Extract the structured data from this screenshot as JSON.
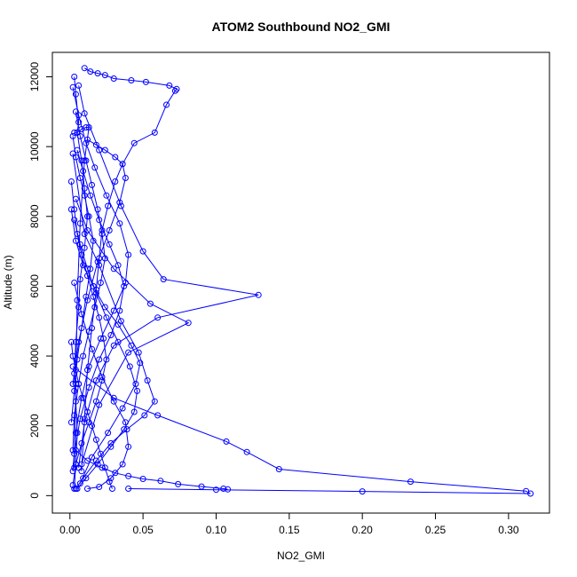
{
  "chart_data": {
    "type": "line",
    "title": "ATOM2 Southbound NO2_GMI",
    "xlabel": "NO2_GMI",
    "ylabel": "Altitude (m)",
    "xlim": [
      -0.012,
      0.328
    ],
    "ylim": [
      -500,
      12700
    ],
    "xticks": [
      0.0,
      0.05,
      0.1,
      0.15,
      0.2,
      0.25,
      0.3
    ],
    "xtick_labels": [
      "0.00",
      "0.05",
      "0.10",
      "0.15",
      "0.20",
      "0.25",
      "0.30"
    ],
    "yticks": [
      0,
      2000,
      4000,
      6000,
      8000,
      10000,
      12000
    ],
    "ytick_labels": [
      "0",
      "2000",
      "4000",
      "6000",
      "8000",
      "10000",
      "12000"
    ],
    "grid": false,
    "colors": {
      "series": "#0000ff"
    },
    "series": [
      {
        "x": [
          0.003,
          0.004,
          0.006,
          0.005,
          0.008,
          0.01,
          0.012,
          0.01,
          0.007,
          0.006,
          0.004,
          0.003,
          0.004,
          0.005,
          0.004,
          0.003
        ],
        "y": [
          12000,
          11500,
          10700,
          10400,
          9600,
          8800,
          8000,
          7100,
          6200,
          5400,
          4400,
          3500,
          2700,
          1800,
          900,
          200
        ]
      },
      {
        "x": [
          0.01,
          0.014,
          0.019,
          0.024,
          0.03,
          0.042,
          0.052,
          0.068,
          0.073,
          0.072,
          0.066,
          0.058,
          0.044,
          0.036,
          0.031,
          0.026,
          0.022,
          0.02,
          0.018,
          0.015,
          0.012,
          0.01,
          0.008
        ],
        "y": [
          12250,
          12150,
          12100,
          12050,
          11950,
          11900,
          11850,
          11750,
          11650,
          11600,
          11200,
          10400,
          10100,
          9500,
          9000,
          8300,
          7600,
          6800,
          5900,
          4800,
          3600,
          2200,
          700
        ]
      },
      {
        "x": [
          0.003,
          0.005,
          0.008,
          0.011,
          0.013,
          0.01,
          0.007,
          0.005,
          0.004,
          0.003
        ],
        "y": [
          10400,
          10400,
          10500,
          10550,
          10550,
          9600,
          7800,
          5600,
          3200,
          800
        ]
      },
      {
        "x": [
          0.006,
          0.01,
          0.02,
          0.035,
          0.05,
          0.064,
          0.129,
          0.06,
          0.03,
          0.018,
          0.01,
          0.006
        ],
        "y": [
          11750,
          10950,
          9900,
          8300,
          7000,
          6200,
          5750,
          5100,
          4300,
          3300,
          2100,
          800
        ]
      },
      {
        "x": [
          0.004,
          0.012,
          0.03,
          0.055,
          0.081,
          0.04,
          0.02,
          0.008
        ],
        "y": [
          8500,
          7600,
          6500,
          5500,
          4950,
          4100,
          2600,
          900
        ]
      },
      {
        "x": [
          0.002,
          0.01,
          0.02,
          0.035,
          0.047,
          0.053,
          0.058,
          0.051,
          0.039,
          0.028,
          0.018,
          0.009,
          0.004
        ],
        "y": [
          9800,
          7500,
          6600,
          5000,
          4100,
          3300,
          2700,
          2300,
          1900,
          1500,
          1000,
          500,
          200
        ]
      },
      {
        "x": [
          0.002,
          0.03,
          0.06,
          0.107,
          0.121,
          0.143,
          0.233,
          0.312,
          0.315,
          0.2,
          0.1,
          0.04
        ],
        "y": [
          3700,
          2800,
          2300,
          1550,
          1250,
          760,
          400,
          130,
          60,
          120,
          170,
          200
        ]
      },
      {
        "x": [
          0.004,
          0.012,
          0.022,
          0.031,
          0.04,
          0.05,
          0.062,
          0.074,
          0.09,
          0.105,
          0.108
        ],
        "y": [
          1300,
          1000,
          800,
          650,
          560,
          480,
          420,
          330,
          260,
          200,
          180
        ]
      },
      {
        "x": [
          0.003,
          0.008,
          0.015,
          0.022,
          0.03,
          0.038,
          0.04,
          0.036,
          0.028,
          0.02,
          0.012
        ],
        "y": [
          6100,
          5200,
          4200,
          3400,
          2700,
          2100,
          1400,
          900,
          500,
          250,
          200
        ]
      },
      {
        "x": [
          0.002,
          0.006,
          0.011,
          0.017,
          0.025,
          0.034,
          0.04,
          0.038,
          0.03,
          0.021,
          0.013,
          0.008,
          0.004,
          0.002
        ],
        "y": [
          11700,
          10900,
          10100,
          9400,
          8600,
          7800,
          6900,
          6100,
          5300,
          4500,
          3700,
          2800,
          1800,
          700
        ]
      },
      {
        "x": [
          0.001,
          0.004,
          0.009,
          0.016,
          0.024,
          0.033,
          0.042,
          0.048,
          0.045,
          0.036,
          0.026,
          0.015,
          0.007
        ],
        "y": [
          8200,
          7300,
          6600,
          6000,
          5400,
          4900,
          4300,
          3800,
          3200,
          2500,
          1800,
          1100,
          350
        ]
      },
      {
        "x": [
          0.012,
          0.018,
          0.024,
          0.031,
          0.036,
          0.038,
          0.034,
          0.027,
          0.019,
          0.012,
          0.006,
          0.002
        ],
        "y": [
          10200,
          10050,
          9900,
          9700,
          9500,
          9100,
          8400,
          7600,
          6700,
          5600,
          4400,
          3200
        ]
      },
      {
        "x": [
          0.001,
          0.003,
          0.005,
          0.008,
          0.012,
          0.016,
          0.02,
          0.023,
          0.025,
          0.022,
          0.018,
          0.013,
          0.008,
          0.004,
          0.002
        ],
        "y": [
          9000,
          8200,
          7500,
          6900,
          6300,
          5700,
          5100,
          4500,
          3900,
          3300,
          2700,
          2100,
          1500,
          900,
          300
        ]
      },
      {
        "x": [
          0.002,
          0.004,
          0.007,
          0.01,
          0.013,
          0.016,
          0.014,
          0.011,
          0.008,
          0.005,
          0.003,
          0.001
        ],
        "y": [
          10300,
          9700,
          9100,
          8600,
          8000,
          7300,
          6500,
          5700,
          4800,
          3900,
          3000,
          2100
        ]
      },
      {
        "x": [
          0.003,
          0.007,
          0.012,
          0.018,
          0.025,
          0.033,
          0.041,
          0.046,
          0.044,
          0.037,
          0.028,
          0.019,
          0.011,
          0.005
        ],
        "y": [
          7900,
          7200,
          6500,
          5800,
          5100,
          4400,
          3700,
          3000,
          2400,
          1900,
          1400,
          900,
          500,
          200
        ]
      },
      {
        "x": [
          0.001,
          0.002,
          0.004,
          0.006,
          0.009,
          0.012,
          0.015,
          0.018,
          0.021,
          0.024,
          0.027,
          0.029
        ],
        "y": [
          4400,
          4000,
          3600,
          3200,
          2800,
          2400,
          2000,
          1600,
          1200,
          800,
          400,
          200
        ]
      },
      {
        "x": [
          0.005,
          0.009,
          0.014,
          0.02,
          0.027,
          0.033,
          0.037,
          0.034,
          0.028,
          0.02,
          0.013,
          0.007,
          0.003
        ],
        "y": [
          9900,
          9300,
          8600,
          7900,
          7200,
          6600,
          6000,
          5300,
          4600,
          3900,
          3100,
          2200,
          1200
        ]
      },
      {
        "x": [
          0.004,
          0.007,
          0.011,
          0.015,
          0.019,
          0.022,
          0.024,
          0.021,
          0.017,
          0.013,
          0.009,
          0.006,
          0.003,
          0.002
        ],
        "y": [
          11000,
          10300,
          9600,
          8900,
          8200,
          7500,
          6800,
          6100,
          5400,
          4700,
          4000,
          3200,
          2300,
          1300
        ]
      }
    ]
  }
}
